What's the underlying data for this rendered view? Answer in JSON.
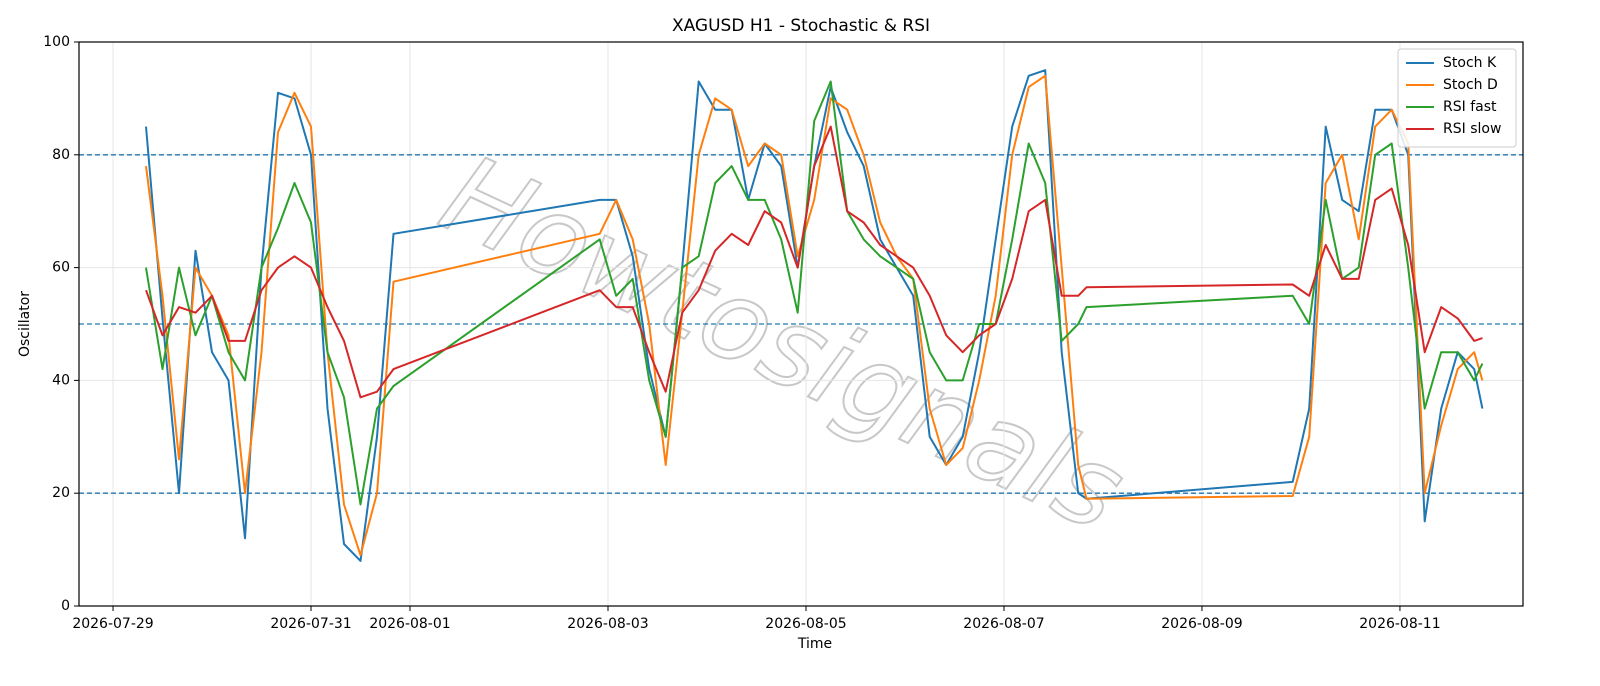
{
  "chart_data": {
    "type": "line",
    "title": "XAGUSD H1 - Stochastic & RSI",
    "xlabel": "Time",
    "ylabel": "Oscillator",
    "watermark": "Howtosignals",
    "x": [
      "2026-07-29T08:00",
      "2026-07-29T12:00",
      "2026-07-29T16:00",
      "2026-07-29T20:00",
      "2026-07-30T00:00",
      "2026-07-30T04:00",
      "2026-07-30T08:00",
      "2026-07-30T12:00",
      "2026-07-30T16:00",
      "2026-07-30T20:00",
      "2026-07-31T00:00",
      "2026-07-31T04:00",
      "2026-07-31T08:00",
      "2026-07-31T12:00",
      "2026-07-31T16:00",
      "2026-07-31T20:00",
      "2026-08-02T22:00",
      "2026-08-03T02:00",
      "2026-08-03T06:00",
      "2026-08-03T10:00",
      "2026-08-03T14:00",
      "2026-08-03T18:00",
      "2026-08-03T22:00",
      "2026-08-04T02:00",
      "2026-08-04T06:00",
      "2026-08-04T10:00",
      "2026-08-04T14:00",
      "2026-08-04T18:00",
      "2026-08-04T22:00",
      "2026-08-05T02:00",
      "2026-08-05T06:00",
      "2026-08-05T10:00",
      "2026-08-05T14:00",
      "2026-08-05T18:00",
      "2026-08-05T22:00",
      "2026-08-06T02:00",
      "2026-08-06T06:00",
      "2026-08-06T10:00",
      "2026-08-06T14:00",
      "2026-08-06T18:00",
      "2026-08-06T22:00",
      "2026-08-07T02:00",
      "2026-08-07T06:00",
      "2026-08-07T10:00",
      "2026-08-07T14:00",
      "2026-08-07T18:00",
      "2026-08-07T20:00",
      "2026-08-09T22:00",
      "2026-08-10T02:00",
      "2026-08-10T06:00",
      "2026-08-10T10:00",
      "2026-08-10T14:00",
      "2026-08-10T18:00",
      "2026-08-10T22:00",
      "2026-08-11T02:00",
      "2026-08-11T06:00",
      "2026-08-11T10:00",
      "2026-08-11T14:00",
      "2026-08-11T18:00",
      "2026-08-11T20:00"
    ],
    "series": [
      {
        "name": "Stoch K",
        "color": "#1f77b4",
        "values": [
          85,
          51,
          20,
          63,
          45,
          40,
          12,
          60,
          91,
          90,
          80,
          35,
          11,
          8,
          30,
          66,
          72,
          72,
          62,
          42,
          30,
          60,
          93,
          88,
          88,
          72,
          82,
          78,
          60,
          78,
          92,
          84,
          78,
          65,
          60,
          55,
          30,
          25,
          30,
          45,
          65,
          85,
          94,
          95,
          45,
          20,
          19,
          22,
          35,
          85,
          72,
          70,
          88,
          88,
          80,
          15,
          35,
          45,
          42,
          35
        ]
      },
      {
        "name": "Stoch D",
        "color": "#ff7f0e",
        "values": [
          78,
          55,
          26,
          60,
          55,
          48,
          20,
          45,
          84,
          91,
          85,
          45,
          18,
          9,
          20,
          57.5,
          66,
          72,
          65,
          50,
          25,
          52,
          80,
          90,
          88,
          78,
          82,
          80,
          62,
          72,
          90,
          88,
          80,
          68,
          62,
          58,
          35,
          25,
          28,
          40,
          55,
          80,
          92,
          94,
          60,
          25,
          19,
          19.5,
          30,
          75,
          80,
          65,
          85,
          88,
          82,
          20,
          32,
          42,
          45,
          40
        ]
      },
      {
        "name": "RSI fast",
        "color": "#2ca02c",
        "values": [
          60,
          42,
          60,
          48,
          55,
          45,
          40,
          60,
          67,
          75,
          68,
          45,
          37,
          18,
          35,
          39,
          65,
          55,
          58,
          40,
          30,
          60,
          62,
          75,
          78,
          72,
          72,
          65,
          52,
          86,
          93,
          70,
          65,
          62,
          60,
          58,
          45,
          40,
          40,
          50,
          50,
          65,
          82,
          75,
          47,
          50,
          53,
          55,
          50,
          72,
          58,
          60,
          80,
          82,
          60,
          35,
          45,
          45,
          40,
          43
        ]
      },
      {
        "name": "RSI slow",
        "color": "#d62728",
        "values": [
          56,
          48,
          53,
          52,
          55,
          47,
          47,
          56,
          60,
          62,
          60,
          53,
          47,
          37,
          38,
          42,
          56,
          53,
          53,
          45,
          38,
          52,
          56,
          63,
          66,
          64,
          70,
          68,
          60,
          78,
          85,
          70,
          68,
          64,
          62,
          60,
          55,
          48,
          45,
          48,
          50,
          58,
          70,
          72,
          55,
          55,
          56.5,
          57,
          55,
          64,
          58,
          58,
          72,
          74,
          64,
          45,
          53,
          51,
          47,
          47.5
        ]
      }
    ],
    "xlim": [
      "2026-07-28T15:45",
      "2026-08-12T05:50"
    ],
    "xticks": [
      "2026-07-29",
      "2026-07-31",
      "2026-08-01",
      "2026-08-03",
      "2026-08-05",
      "2026-08-07",
      "2026-08-09",
      "2026-08-11"
    ],
    "ylim": [
      0,
      100
    ],
    "yticks": [
      0,
      20,
      40,
      60,
      80,
      100
    ],
    "hlines": [
      20,
      50,
      80
    ],
    "hline_color": "#1f77b4",
    "grid": true,
    "legend": "upper right"
  }
}
